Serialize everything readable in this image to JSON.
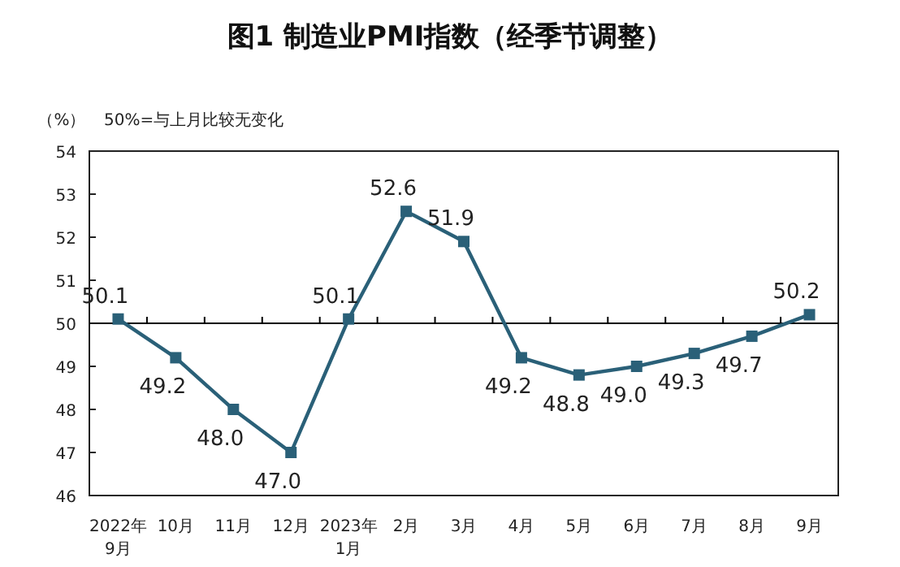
{
  "chart_data": {
    "type": "line",
    "title": "图1 制造业PMI指数（经季节调整）",
    "ylabel": "（%）",
    "annotations": [
      "50%=与上月比较无变化"
    ],
    "categories": [
      "2022年\n9月",
      "10月",
      "11月",
      "12月",
      "2023年\n1月",
      "2月",
      "3月",
      "4月",
      "5月",
      "6月",
      "7月",
      "8月",
      "9月"
    ],
    "series": [
      {
        "color": "#2a6078",
        "values": [
          50.1,
          49.2,
          48.0,
          47.0,
          50.1,
          52.6,
          51.9,
          49.2,
          48.8,
          49.0,
          49.3,
          49.7,
          50.2
        ],
        "value_labels": [
          "50.1",
          "49.2",
          "48.0",
          "47.0",
          "50.1",
          "52.6",
          "51.9",
          "49.2",
          "48.8",
          "49.0",
          "49.3",
          "49.7",
          "50.2"
        ]
      }
    ],
    "ylim": [
      46,
      54
    ],
    "yticks": [
      46,
      47,
      48,
      49,
      50,
      51,
      52,
      53,
      54
    ],
    "ref_lines": [
      {
        "axis": "y",
        "value": 50,
        "color": "#000000"
      }
    ],
    "marker": "square",
    "line_style": "solid",
    "grid": false
  }
}
